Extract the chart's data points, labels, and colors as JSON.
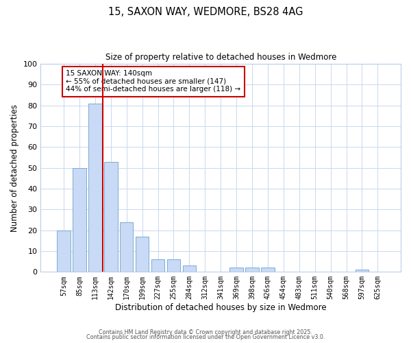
{
  "title": "15, SAXON WAY, WEDMORE, BS28 4AG",
  "subtitle": "Size of property relative to detached houses in Wedmore",
  "xlabel": "Distribution of detached houses by size in Wedmore",
  "ylabel": "Number of detached properties",
  "bar_labels": [
    "57sqm",
    "85sqm",
    "113sqm",
    "142sqm",
    "170sqm",
    "199sqm",
    "227sqm",
    "255sqm",
    "284sqm",
    "312sqm",
    "341sqm",
    "369sqm",
    "398sqm",
    "426sqm",
    "454sqm",
    "483sqm",
    "511sqm",
    "540sqm",
    "568sqm",
    "597sqm",
    "625sqm"
  ],
  "bar_values": [
    20,
    50,
    81,
    53,
    24,
    17,
    6,
    6,
    3,
    0,
    0,
    2,
    2,
    2,
    0,
    0,
    0,
    0,
    0,
    1,
    0
  ],
  "bar_color": "#c8daf5",
  "bar_edge_color": "#7baad4",
  "ylim": [
    0,
    100
  ],
  "yticks": [
    0,
    10,
    20,
    30,
    40,
    50,
    60,
    70,
    80,
    90,
    100
  ],
  "vline_x": 2.5,
  "vline_color": "#cc0000",
  "annotation_text": "15 SAXON WAY: 140sqm\n← 55% of detached houses are smaller (147)\n44% of semi-detached houses are larger (118) →",
  "annotation_box_color": "#ffffff",
  "annotation_box_edge": "#cc0000",
  "footer1": "Contains HM Land Registry data © Crown copyright and database right 2025.",
  "footer2": "Contains public sector information licensed under the Open Government Licence v3.0.",
  "background_color": "#ffffff",
  "grid_color": "#c8d8ee"
}
